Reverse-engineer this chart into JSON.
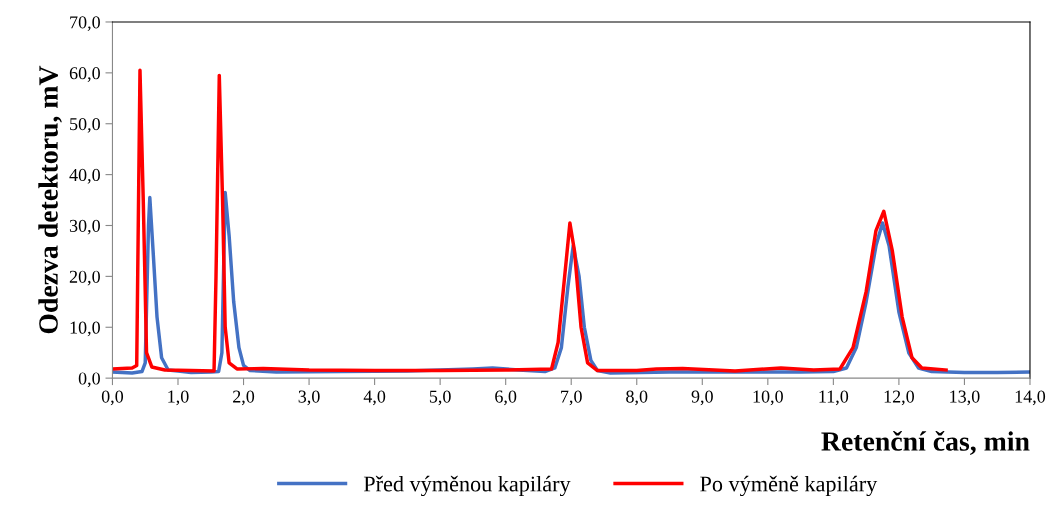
{
  "chart_data": {
    "type": "line",
    "xlabel": "Retenční čas, min",
    "ylabel": "Odezva detektoru, mV",
    "xlim": [
      0,
      14
    ],
    "ylim": [
      0,
      70
    ],
    "xticks": [
      {
        "value": 0,
        "label": "0,0"
      },
      {
        "value": 1,
        "label": "1,0"
      },
      {
        "value": 2,
        "label": "2,0"
      },
      {
        "value": 3,
        "label": "3,0"
      },
      {
        "value": 4,
        "label": "4,0"
      },
      {
        "value": 5,
        "label": "5,0"
      },
      {
        "value": 6,
        "label": "6,0"
      },
      {
        "value": 7,
        "label": "7,0"
      },
      {
        "value": 8,
        "label": "8,0"
      },
      {
        "value": 9,
        "label": "9,0"
      },
      {
        "value": 10,
        "label": "10,0"
      },
      {
        "value": 11,
        "label": "11,0"
      },
      {
        "value": 12,
        "label": "12,0"
      },
      {
        "value": 13,
        "label": "13,0"
      },
      {
        "value": 14,
        "label": "14,0"
      }
    ],
    "yticks": [
      {
        "value": 0,
        "label": "0,0"
      },
      {
        "value": 10,
        "label": "10,0"
      },
      {
        "value": 20,
        "label": "20,0"
      },
      {
        "value": 30,
        "label": "30,0"
      },
      {
        "value": 40,
        "label": "40,0"
      },
      {
        "value": 50,
        "label": "50,0"
      },
      {
        "value": 60,
        "label": "60,0"
      },
      {
        "value": 70,
        "label": "70,0"
      }
    ],
    "grid": false,
    "legend": "bottom",
    "marker": "none",
    "line_style": "solid",
    "series": [
      {
        "name": "Před výměnou kapiláry",
        "color": "#4472c4",
        "x": [
          0,
          0.3,
          0.45,
          0.5,
          0.55,
          0.57,
          0.62,
          0.68,
          0.75,
          0.85,
          1.0,
          1.2,
          1.5,
          1.62,
          1.67,
          1.72,
          1.78,
          1.85,
          1.93,
          2.0,
          2.1,
          2.5,
          3.5,
          4.5,
          5.5,
          5.8,
          6.2,
          6.6,
          6.75,
          6.85,
          6.95,
          7.03,
          7.12,
          7.2,
          7.3,
          7.4,
          7.6,
          8.5,
          9.5,
          10.5,
          11.0,
          11.2,
          11.35,
          11.5,
          11.65,
          11.75,
          11.85,
          12.0,
          12.15,
          12.3,
          12.5,
          13,
          13.5,
          14
        ],
        "values": [
          1.2,
          1.0,
          1.3,
          3,
          30,
          35.5,
          25,
          12,
          4,
          1.6,
          1.4,
          1.1,
          1.2,
          1.3,
          5,
          36.5,
          28,
          15,
          6,
          2.5,
          1.5,
          1.2,
          1.3,
          1.4,
          1.8,
          2.0,
          1.6,
          1.3,
          2,
          6,
          18,
          26,
          20,
          10,
          3.5,
          1.5,
          1.0,
          1.2,
          1.2,
          1.2,
          1.3,
          2,
          6,
          15,
          26,
          30.5,
          26,
          13,
          5,
          2,
          1.3,
          1.1,
          1.1,
          1.2
        ]
      },
      {
        "name": "Po výměně kapiláry",
        "color": "#ff0000",
        "x": [
          0,
          0.3,
          0.37,
          0.42,
          0.47,
          0.52,
          0.6,
          0.8,
          1.2,
          1.55,
          1.58,
          1.63,
          1.68,
          1.72,
          1.78,
          1.9,
          2.3,
          3,
          4,
          5,
          6,
          6.7,
          6.8,
          6.9,
          6.98,
          7.05,
          7.15,
          7.25,
          7.4,
          8,
          8.3,
          8.7,
          9.5,
          10.2,
          10.7,
          11.1,
          11.3,
          11.5,
          11.65,
          11.77,
          11.9,
          12.05,
          12.2,
          12.35,
          12.72
        ],
        "values": [
          1.8,
          2.0,
          2.5,
          60.5,
          35,
          5,
          2.2,
          1.6,
          1.5,
          1.4,
          20,
          59.5,
          35,
          10,
          3,
          1.8,
          1.9,
          1.6,
          1.5,
          1.5,
          1.6,
          1.8,
          7,
          20,
          30.5,
          25,
          10,
          3,
          1.5,
          1.5,
          1.8,
          1.9,
          1.4,
          2.0,
          1.6,
          1.8,
          6,
          17,
          29,
          32.8,
          25,
          12,
          4,
          2,
          1.6
        ]
      }
    ]
  }
}
